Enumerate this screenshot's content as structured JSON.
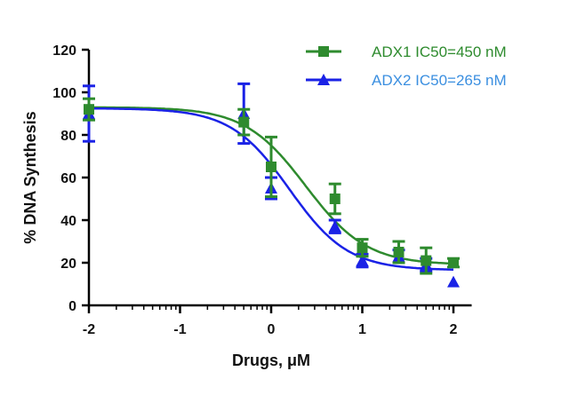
{
  "chart_data": {
    "type": "scatter",
    "xlabel": "Drugs, μM",
    "ylabel": "% DNA Synthesis",
    "xlim": [
      -2,
      2.2
    ],
    "ylim": [
      0,
      120
    ],
    "x_ticks": [
      -2,
      -1,
      0,
      1,
      2
    ],
    "y_ticks": [
      0,
      20,
      40,
      60,
      80,
      100,
      120
    ],
    "x_tick_labels": [
      "-2",
      "-1",
      "0",
      "1",
      "2"
    ],
    "y_tick_labels": [
      "0",
      "20",
      "40",
      "60",
      "80",
      "100",
      "120"
    ],
    "x_scale_note": "log10 concentration",
    "legend_position": "top-right",
    "grid": false,
    "series": [
      {
        "name": "ADX1 IC50=450 nM",
        "color": "#2e8b2e",
        "marker": "square",
        "points": [
          {
            "x": -2.0,
            "y": 92,
            "err": 5
          },
          {
            "x": -0.3,
            "y": 86,
            "err": 6
          },
          {
            "x": 0.0,
            "y": 65,
            "err": 14
          },
          {
            "x": 0.7,
            "y": 50,
            "err": 7
          },
          {
            "x": 1.0,
            "y": 27,
            "err": 4
          },
          {
            "x": 1.4,
            "y": 25,
            "err": 5
          },
          {
            "x": 1.7,
            "y": 21,
            "err": 6
          },
          {
            "x": 2.0,
            "y": 20,
            "err": 2
          }
        ],
        "fit": {
          "top": 93,
          "bottom": 19,
          "log_ic50": 0.38,
          "hill": 1.3
        }
      },
      {
        "name": "ADX2 IC50=265 nM",
        "color": "#1a22e6",
        "marker": "triangle",
        "points": [
          {
            "x": -2.0,
            "y": 90,
            "err": 13
          },
          {
            "x": -0.3,
            "y": 90,
            "err": 14
          },
          {
            "x": 0.0,
            "y": 55,
            "err": 5
          },
          {
            "x": 0.7,
            "y": 37,
            "err": 3
          },
          {
            "x": 1.0,
            "y": 21,
            "err": 3
          },
          {
            "x": 1.4,
            "y": 23,
            "err": 3
          },
          {
            "x": 1.7,
            "y": 19,
            "err": 3
          },
          {
            "x": 2.0,
            "y": 11,
            "err": 0
          }
        ],
        "fit": {
          "top": 92.5,
          "bottom": 16.5,
          "log_ic50": 0.2,
          "hill": 1.35
        }
      }
    ]
  },
  "legend": {
    "items": [
      {
        "label": "ADX1 IC50=450 nM",
        "label_color": "#2e8b2e"
      },
      {
        "label": "ADX2 IC50=265 nM",
        "label_color": "#3b8fe0"
      }
    ]
  }
}
